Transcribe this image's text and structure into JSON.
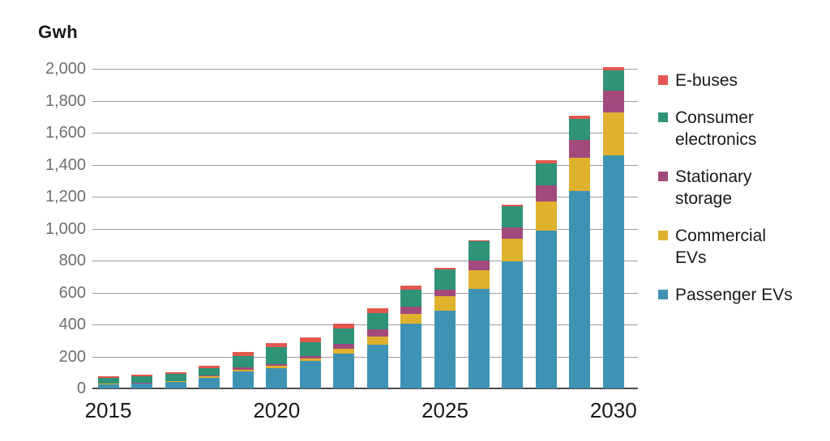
{
  "title": "Gwh",
  "chart_data": {
    "type": "bar",
    "stacked": true,
    "title": "Gwh",
    "ylabel": "Gwh",
    "xlabel": "",
    "grid": "horizontal",
    "legend_position": "right",
    "ylim": [
      0,
      2000
    ],
    "y_ticks": [
      0,
      200,
      400,
      600,
      800,
      1000,
      1200,
      1400,
      1600,
      1800,
      2000
    ],
    "y_tick_labels": [
      "0",
      "200",
      "400",
      "600",
      "800",
      "1,000",
      "1,200",
      "1,400",
      "1,600",
      "1,800",
      "2,000"
    ],
    "categories": [
      2015,
      2016,
      2017,
      2018,
      2019,
      2020,
      2021,
      2022,
      2023,
      2024,
      2025,
      2026,
      2027,
      2028,
      2029,
      2030
    ],
    "x_tick_labels": [
      "2015",
      "2020",
      "2025",
      "2030"
    ],
    "x_tick_years": [
      2015,
      2020,
      2025,
      2030
    ],
    "series": [
      {
        "name": "Passenger EVs",
        "color": "#3E93B4",
        "values": [
          25,
          30,
          40,
          68,
          108,
          127,
          174,
          220,
          276,
          403,
          487,
          625,
          795,
          985,
          1235,
          1458
        ]
      },
      {
        "name": "Commercial EVs",
        "color": "#DFB22E",
        "values": [
          3,
          3,
          4,
          6,
          10,
          14,
          15,
          29,
          49,
          64,
          88,
          115,
          144,
          183,
          207,
          270
        ]
      },
      {
        "name": "Stationary storage",
        "color": "#A34A7D",
        "values": [
          2,
          2,
          3,
          6,
          12,
          12,
          13,
          30,
          45,
          46,
          44,
          59,
          68,
          105,
          115,
          135
        ]
      },
      {
        "name": "Consumer electronics",
        "color": "#2E9377",
        "values": [
          35,
          40,
          42,
          45,
          75,
          105,
          88,
          98,
          103,
          107,
          123,
          124,
          130,
          135,
          128,
          125
        ]
      },
      {
        "name": "E-buses",
        "color": "#E2574E",
        "values": [
          10,
          10,
          12,
          15,
          25,
          27,
          28,
          28,
          28,
          22,
          15,
          5,
          15,
          20,
          20,
          22
        ]
      }
    ],
    "legend_order_top_to_bottom": [
      "E-buses",
      "Consumer electronics",
      "Stationary storage",
      "Commercial EVs",
      "Passenger EVs"
    ]
  }
}
